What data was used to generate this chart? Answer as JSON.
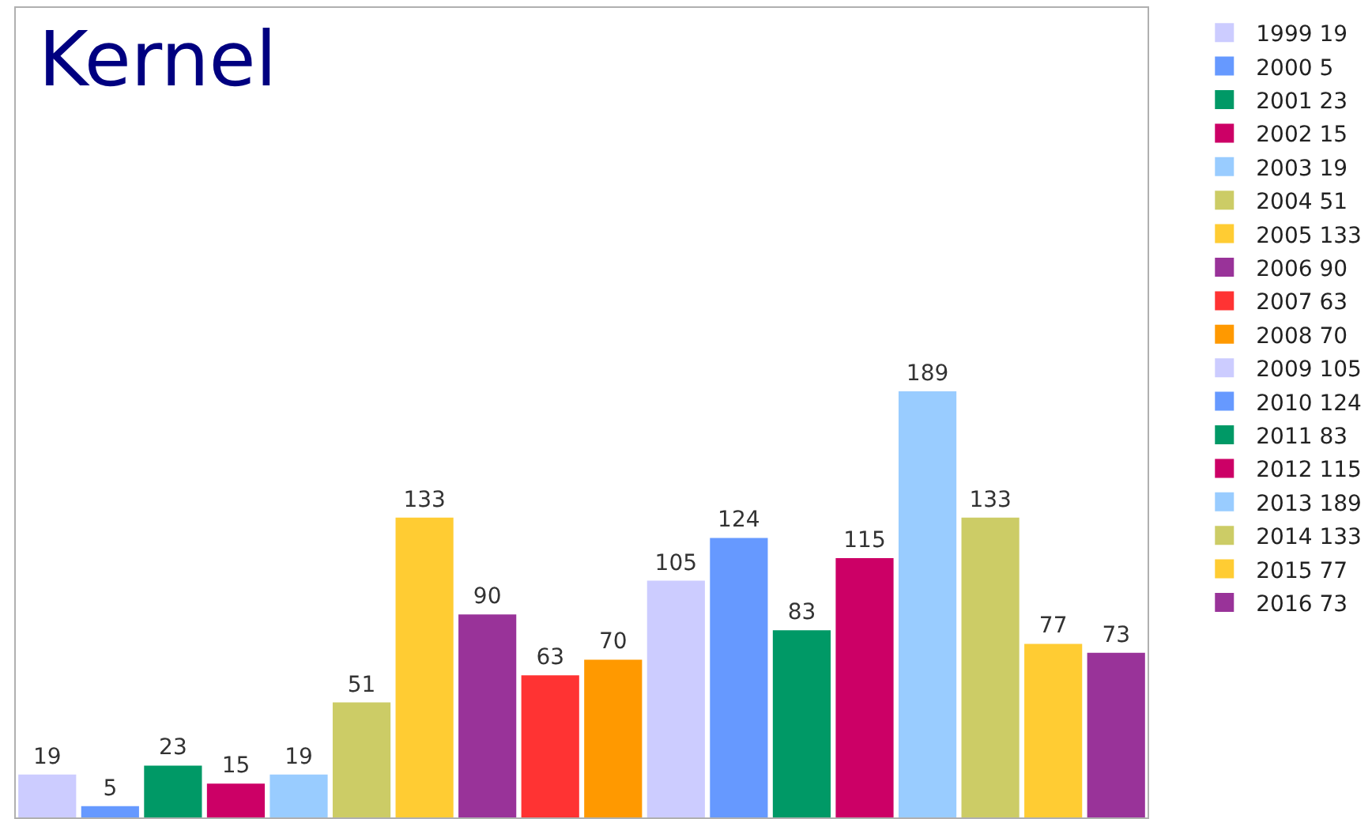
{
  "chart_data": {
    "type": "bar",
    "title": "Kernel",
    "categories": [
      null
    ],
    "data_labels": true,
    "legend": "right",
    "series": [
      {
        "name": "1999 19",
        "color": "#ccccff",
        "values": [
          19
        ]
      },
      {
        "name": "2000 5",
        "color": "#6699ff",
        "values": [
          5
        ]
      },
      {
        "name": "2001 23",
        "color": "#009966",
        "values": [
          23
        ]
      },
      {
        "name": "2002 15",
        "color": "#cc0066",
        "values": [
          15
        ]
      },
      {
        "name": "2003 19",
        "color": "#99ccff",
        "values": [
          19
        ]
      },
      {
        "name": "2004 51",
        "color": "#cccc66",
        "values": [
          51
        ]
      },
      {
        "name": "2005 133",
        "color": "#ffcc33",
        "values": [
          133
        ]
      },
      {
        "name": "2006 90",
        "color": "#993399",
        "values": [
          90
        ]
      },
      {
        "name": "2007 63",
        "color": "#ff3333",
        "values": [
          63
        ]
      },
      {
        "name": "2008 70",
        "color": "#ff9900",
        "values": [
          70
        ]
      },
      {
        "name": "2009 105",
        "color": "#ccccff",
        "values": [
          105
        ]
      },
      {
        "name": "2010 124",
        "color": "#6699ff",
        "values": [
          124
        ]
      },
      {
        "name": "2011 83",
        "color": "#009966",
        "values": [
          83
        ]
      },
      {
        "name": "2012 115",
        "color": "#cc0066",
        "values": [
          115
        ]
      },
      {
        "name": "2013 189",
        "color": "#99ccff",
        "values": [
          189
        ]
      },
      {
        "name": "2014 133",
        "color": "#cccc66",
        "values": [
          133
        ]
      },
      {
        "name": "2015 77",
        "color": "#ffcc33",
        "values": [
          77
        ]
      },
      {
        "name": "2016 73",
        "color": "#993399",
        "values": [
          73
        ]
      }
    ]
  }
}
